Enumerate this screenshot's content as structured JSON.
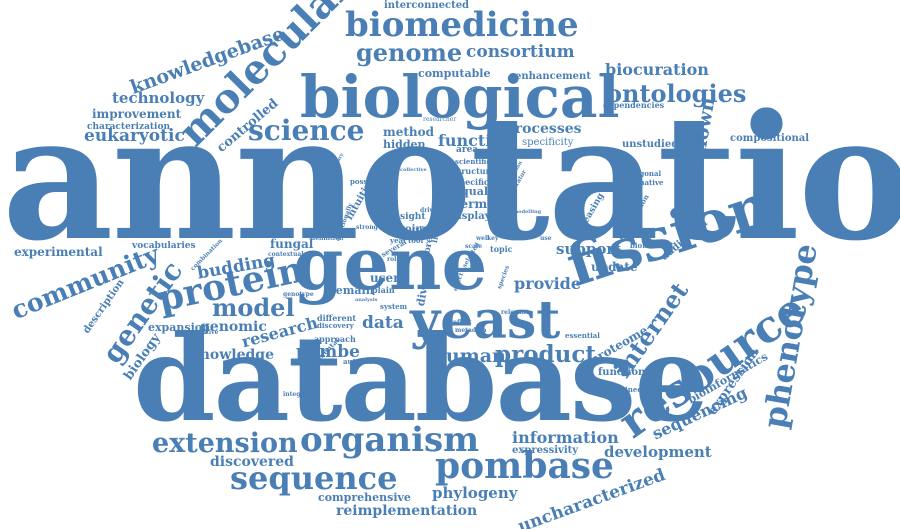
{
  "colors": {
    "word": "#4a7fb5",
    "background": "#ffffff"
  },
  "words": {
    "annotation": "annotation",
    "database": "database",
    "gene": "gene",
    "biological": "biological",
    "yeast": "yeast",
    "fission": "fission",
    "resource": "resource",
    "molecular": "molecular",
    "biomedicine": "biomedicine",
    "protein": "protein",
    "organism": "organism",
    "pombase": "pombase",
    "sequence": "sequence",
    "science": "science",
    "phenotype": "phenotype",
    "genome": "genome",
    "ontologies": "ontologies",
    "extension": "extension",
    "community": "community",
    "genetic": "genetic",
    "model": "model",
    "product": "product",
    "human": "human",
    "internet": "internet",
    "consortium": "consortium",
    "knowledgebase": "knowledgebase",
    "technology": "technology",
    "eukaryotic": "eukaryotic",
    "biocuration": "biocuration",
    "unknown": "unknown",
    "information": "information",
    "development": "development",
    "sequencing": "sequencing",
    "uncharacterized": "uncharacterized",
    "phylogeny": "phylogeny",
    "reimplementation": "reimplementation",
    "comprehensive": "comprehensive",
    "discovered": "discovered",
    "knowledge": "knowledge",
    "research": "research",
    "genomic": "genomic",
    "biology": "biology",
    "experimental": "experimental",
    "budding": "budding",
    "support": "support",
    "update": "update",
    "provide": "provide",
    "data": "data",
    "pombe": "pombe",
    "function": "function",
    "processes": "processes",
    "method": "method",
    "hidden": "hidden",
    "improvement": "improvement",
    "controlled": "controlled",
    "characterization": "characterization",
    "interconnected": "interconnected",
    "computable": "computable",
    "enhancement": "enhancement",
    "dependencies": "dependencies",
    "compositional": "compositional",
    "unstudied": "unstudied",
    "specificity": "specificity",
    "expression": "expression",
    "bioinformatics": "bioinformatics",
    "proteome": "proteome",
    "functional": "functional",
    "expressivity": "expressivity",
    "fungal": "fungal",
    "vocabularies": "vocabularies",
    "description": "description",
    "expansion": "expansion",
    "quality": "quality",
    "term": "term",
    "display": "display",
    "scientific": "scientific",
    "structure": "structure",
    "specific": "specific",
    "diverse": "diverse",
    "user": "user",
    "plain": "plain",
    "remain": "remain",
    "different": "different",
    "discovery": "discovery",
    "approach": "approach",
    "going": "going",
    "sight": "sight",
    "intuitive": "intuitive",
    "topic": "topic",
    "additional": "additional",
    "biomedical": "biomedical",
    "orthogonal": "orthogonal",
    "informative": "informative",
    "increasing": "increasing",
    "transcription": "transcription",
    "essential": "essential",
    "determined": "determined",
    "automated": "automated",
    "fundamental": "fundamental",
    "comparative": "comparative",
    "combination": "combination",
    "contextual": "contextual",
    "definition": "definition",
    "explosion": "explosion",
    "possible": "possible",
    "browser": "browser",
    "system": "system",
    "researcher": "researcher",
    "biocurator": "biocurator",
    "additionally": "additionally",
    "several": "several",
    "more": "more",
    "life": "life",
    "year": "year",
    "tool": "tool",
    "strong": "strong",
    "driven": "driven",
    "genotype": "genotype",
    "analysis": "analysis",
    "integrate": "integrate",
    "species": "species",
    "metadata": "metadata",
    "cell": "cell",
    "effect": "effect",
    "reflect": "reflect",
    "regulation": "regulation",
    "modelling": "modelling",
    "scale": "scale",
    "selected": "selected",
    "relevant": "relevant",
    "collective": "collective",
    "summary": "summary",
    "area": "area",
    "role": "role",
    "well": "well",
    "key": "key",
    "use": "use"
  }
}
